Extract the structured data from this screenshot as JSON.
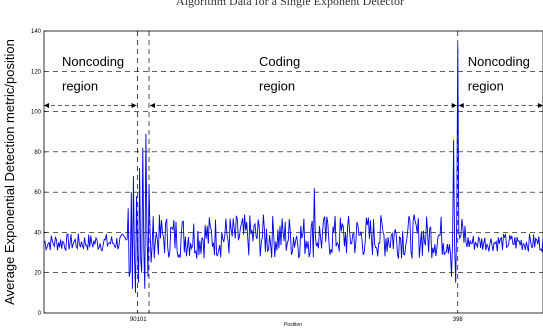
{
  "title_fragment": "Algorithm Data for a Single Exponent Detector",
  "chart_data": {
    "type": "line",
    "title": "",
    "xlabel": "Position",
    "ylabel": "Average Exponential Detection metric/position",
    "xlim": [
      0,
      480
    ],
    "ylim": [
      0,
      140
    ],
    "y_ticks": [
      0,
      20,
      40,
      60,
      80,
      100,
      120,
      140
    ],
    "x_ticks": [
      {
        "value": 90,
        "label": "90"
      },
      {
        "value": 101,
        "label": "101"
      },
      {
        "value": 398,
        "label": "398"
      }
    ],
    "grid": "horizontal dashed",
    "vertical_markers": [
      90,
      101,
      398
    ],
    "regions": [
      {
        "line1": "Noncoding",
        "line2": "region",
        "from": 0,
        "to": 90
      },
      {
        "line1": "Coding",
        "line2": "region",
        "from": 101,
        "to": 398
      },
      {
        "line1": "Noncoding",
        "line2": "region",
        "from": 398,
        "to": 480
      }
    ],
    "series": [
      {
        "color": "#0000ee",
        "baseline": 35,
        "spikes": [
          {
            "x": 81,
            "y": 52
          },
          {
            "x": 82,
            "y": 18
          },
          {
            "x": 84,
            "y": 60
          },
          {
            "x": 85,
            "y": 12
          },
          {
            "x": 86,
            "y": 68
          },
          {
            "x": 88,
            "y": 10
          },
          {
            "x": 89,
            "y": 58
          },
          {
            "x": 91,
            "y": 15
          },
          {
            "x": 92,
            "y": 72
          },
          {
            "x": 94,
            "y": 20
          },
          {
            "x": 95,
            "y": 82
          },
          {
            "x": 97,
            "y": 12
          },
          {
            "x": 98,
            "y": 89
          },
          {
            "x": 100,
            "y": 18
          },
          {
            "x": 101,
            "y": 64
          },
          {
            "x": 103,
            "y": 25
          },
          {
            "x": 260,
            "y": 62
          },
          {
            "x": 392,
            "y": 18
          },
          {
            "x": 394,
            "y": 86
          },
          {
            "x": 396,
            "y": 15
          },
          {
            "x": 398,
            "y": 133
          },
          {
            "x": 399,
            "y": 40
          }
        ]
      }
    ]
  }
}
